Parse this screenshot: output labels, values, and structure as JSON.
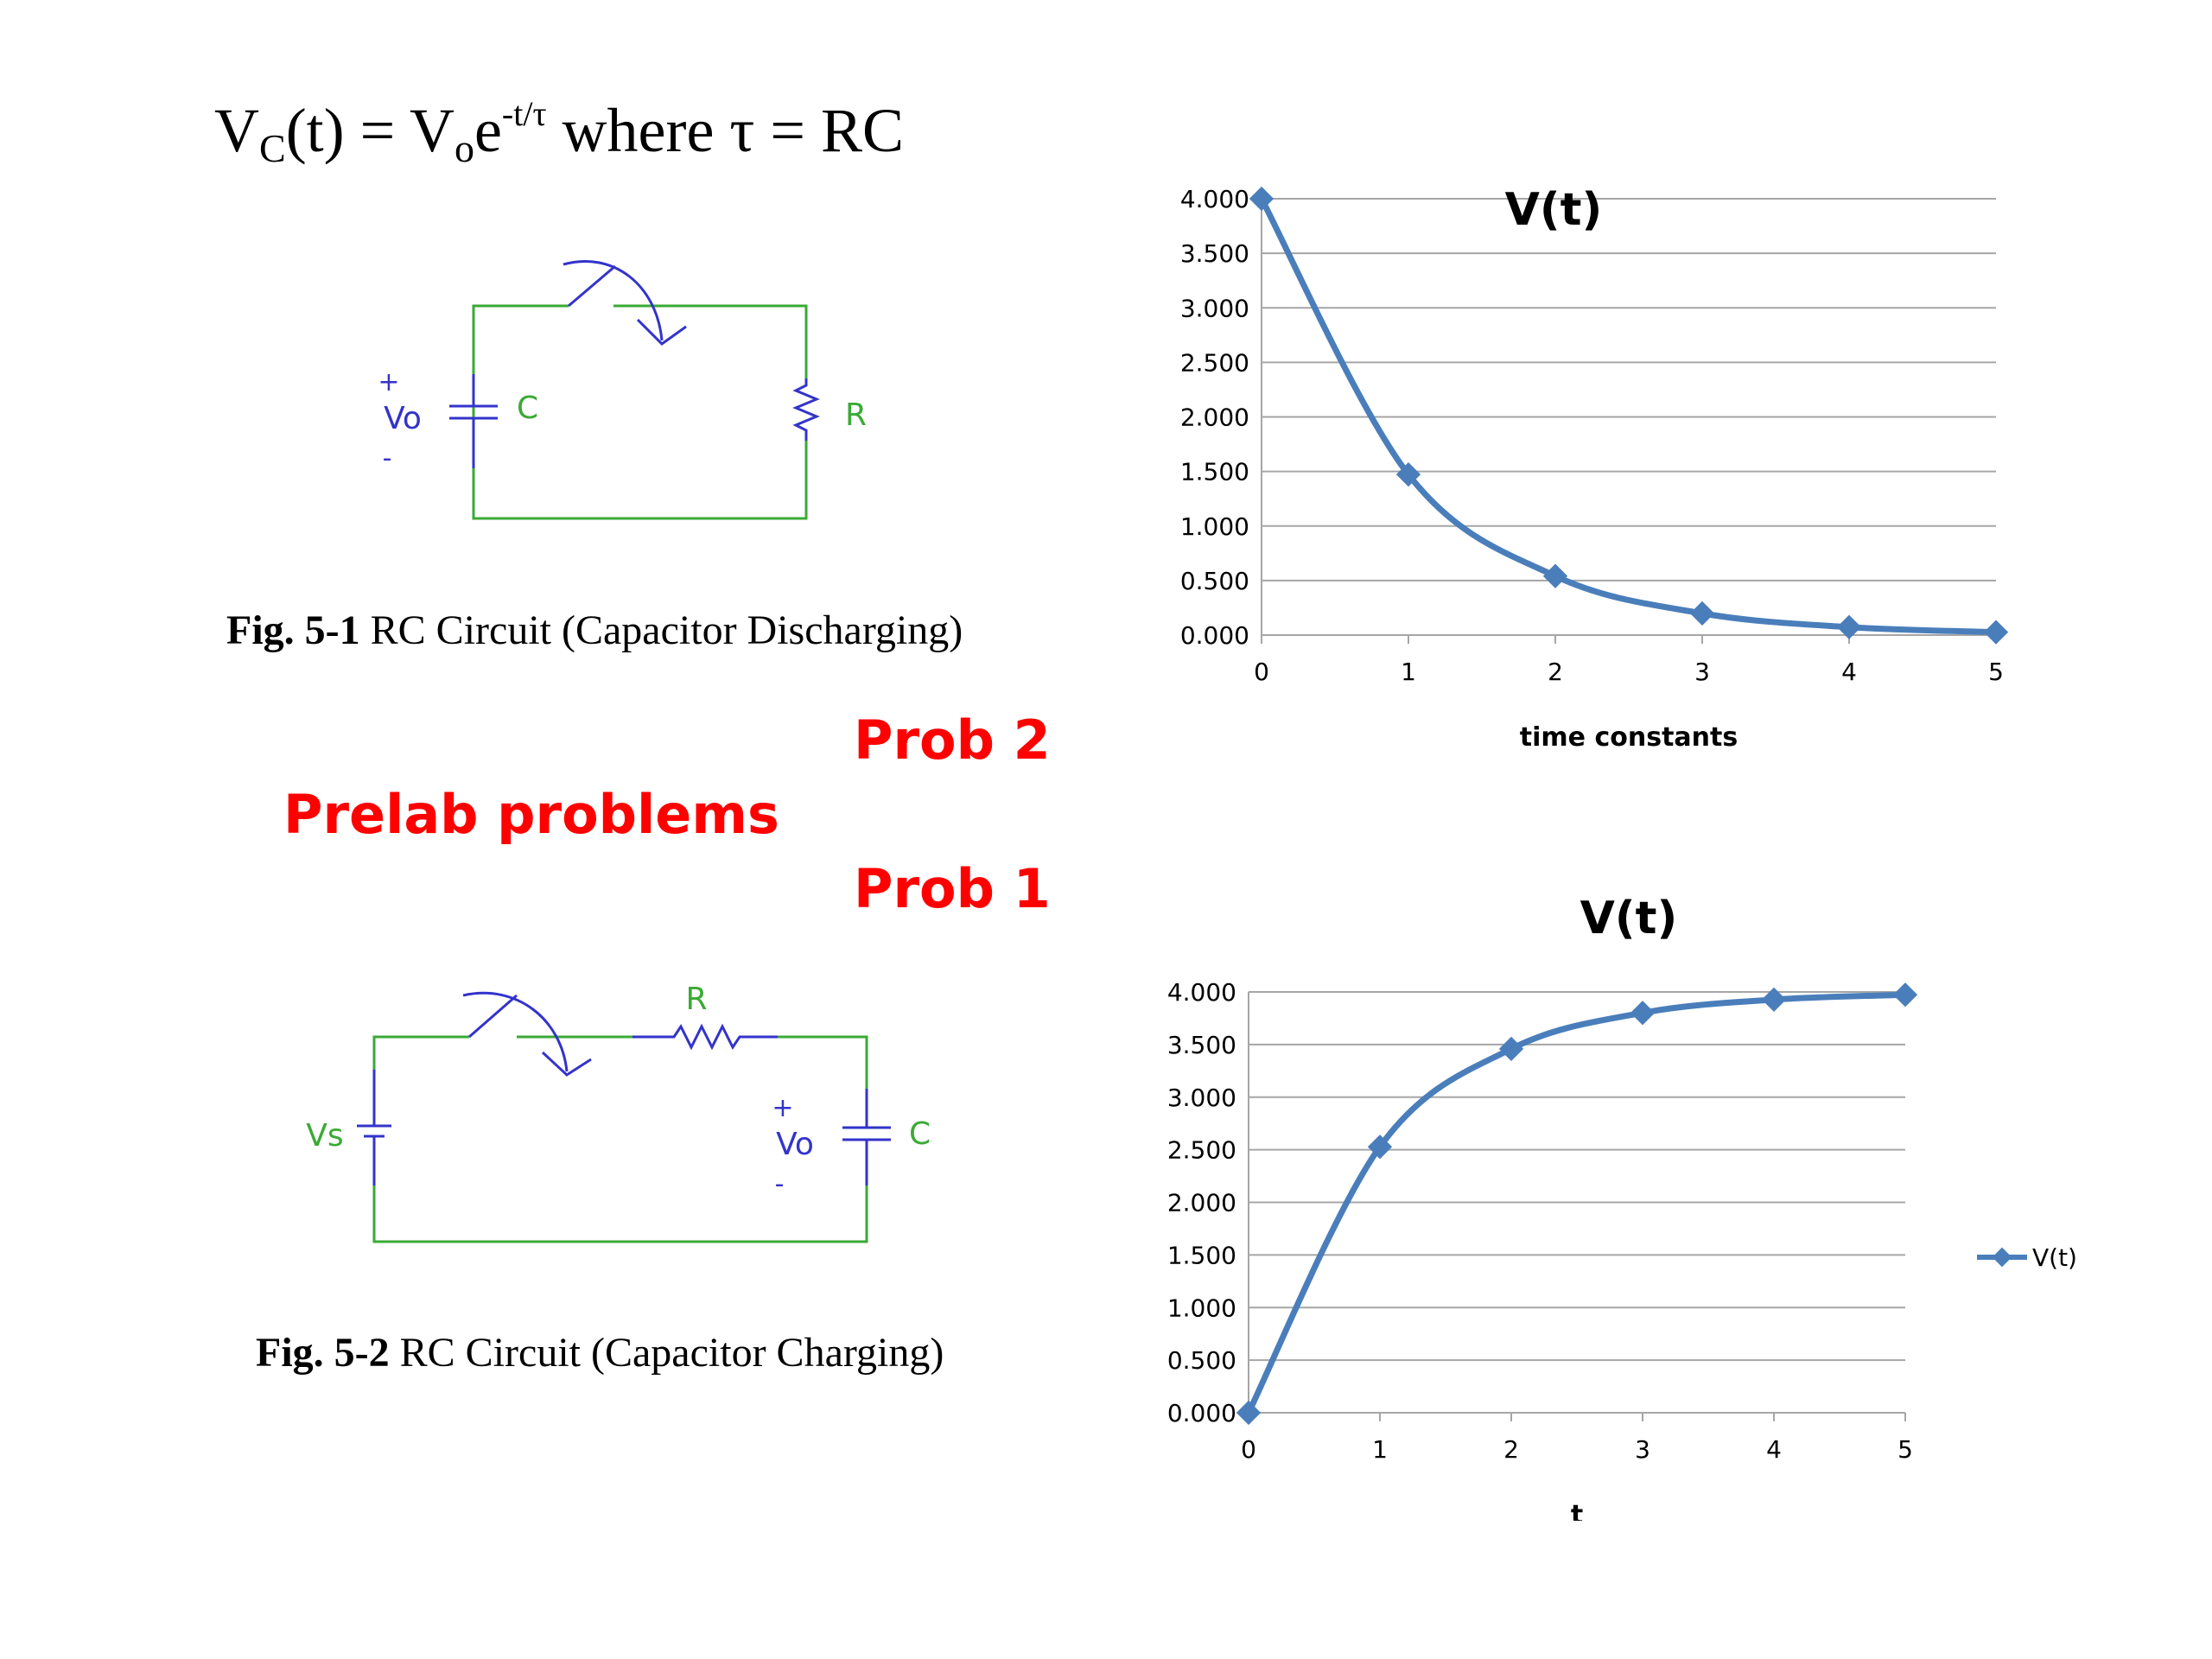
{
  "formula": {
    "lhs_v": "V",
    "lhs_sub": "C",
    "lhs_arg": "(t) = V",
    "rhs_sub": "o",
    "rhs_e": "e",
    "rhs_exp": "-t/τ",
    "rest": " where τ = RC"
  },
  "labels": {
    "prob2": "Prob 2",
    "prelab": "Prelab problems",
    "prob1": "Prob 1"
  },
  "fig1": {
    "caption_bold": "Fig. 5-1",
    "caption_text": " RC Circuit (Capacitor Discharging)",
    "plus": "+",
    "vo": "Vo",
    "minus": "-",
    "c": "C",
    "r": "R"
  },
  "fig2": {
    "caption_bold": "Fig. 5-2",
    "caption_text": " RC Circuit (Capacitor Charging)",
    "vs": "Vs",
    "plus": "+",
    "vo": "Vo",
    "minus": "-",
    "c": "C",
    "r": "R"
  },
  "colors": {
    "series": "#4a7ebb",
    "wire": "#3aaa35",
    "component": "#3333cc",
    "label_red": "#ff0000",
    "grid": "#a6a6a6"
  },
  "chart_data": [
    {
      "type": "line",
      "title": "V(t)",
      "xlabel": "time constants",
      "ylabel": "",
      "x": [
        0,
        1,
        2,
        3,
        4,
        5
      ],
      "x_ticks": [
        "0",
        "1",
        "2",
        "3",
        "4",
        "5"
      ],
      "y_ticks": [
        "0.000",
        "0.500",
        "1.000",
        "1.500",
        "2.000",
        "2.500",
        "3.000",
        "3.500",
        "4.000"
      ],
      "ylim": [
        0,
        4
      ],
      "grid": true,
      "legend": "none",
      "series": [
        {
          "values": [
            4.0,
            1.472,
            0.541,
            0.199,
            0.073,
            0.027
          ],
          "marker": "diamond"
        }
      ]
    },
    {
      "type": "line",
      "title": "V(t)",
      "xlabel": "t",
      "ylabel": "",
      "x": [
        0,
        1,
        2,
        3,
        4,
        5
      ],
      "x_ticks": [
        "0",
        "1",
        "2",
        "3",
        "4",
        "5"
      ],
      "y_ticks": [
        "0.000",
        "0.500",
        "1.000",
        "1.500",
        "2.000",
        "2.500",
        "3.000",
        "3.500",
        "4.000"
      ],
      "ylim": [
        0,
        4
      ],
      "grid": true,
      "legend": "right",
      "series": [
        {
          "name": "V(t)",
          "values": [
            0.0,
            2.528,
            3.459,
            3.801,
            3.927,
            3.973
          ],
          "marker": "diamond"
        }
      ]
    }
  ]
}
